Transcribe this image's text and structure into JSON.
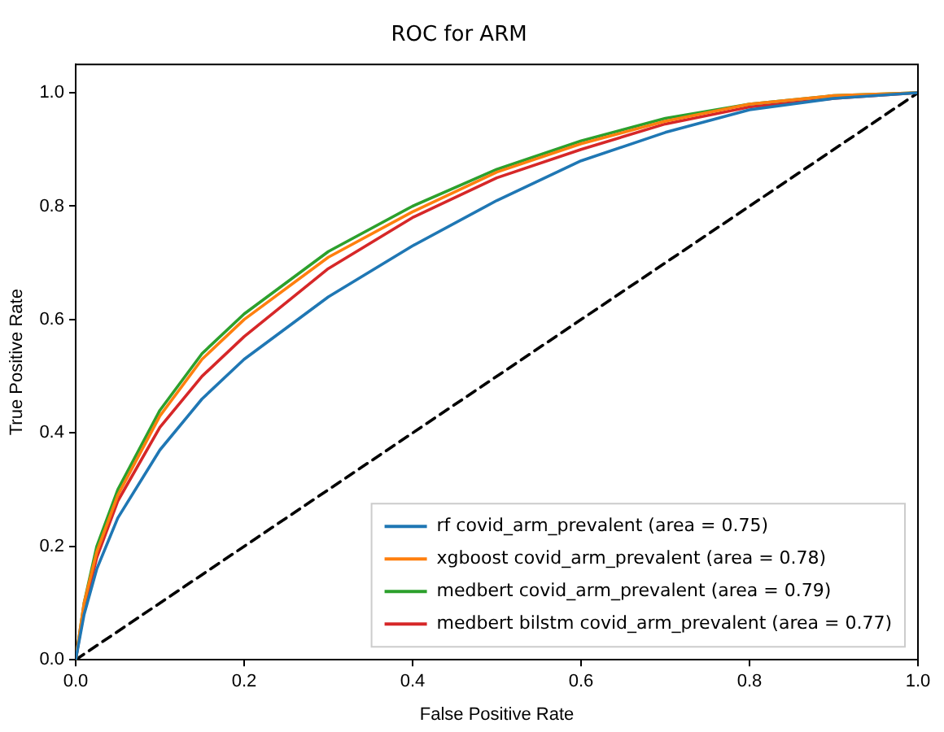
{
  "chart_data": {
    "type": "line",
    "title": "ROC for ARM",
    "xlabel": "False Positive Rate",
    "ylabel": "True Positive Rate",
    "xlim": [
      0,
      1
    ],
    "ylim": [
      0,
      1.05
    ],
    "xticks": [
      {
        "value": 0,
        "label": "0.0"
      },
      {
        "value": 0.2,
        "label": "0.2"
      },
      {
        "value": 0.4,
        "label": "0.4"
      },
      {
        "value": 0.6,
        "label": "0.6"
      },
      {
        "value": 0.8,
        "label": "0.8"
      },
      {
        "value": 1,
        "label": "1.0"
      }
    ],
    "yticks": [
      {
        "value": 0,
        "label": "0.0"
      },
      {
        "value": 0.2,
        "label": "0.2"
      },
      {
        "value": 0.4,
        "label": "0.4"
      },
      {
        "value": 0.6,
        "label": "0.6"
      },
      {
        "value": 0.8,
        "label": "0.8"
      },
      {
        "value": 1,
        "label": "1.0"
      }
    ],
    "grid": false,
    "legend": "bottom right",
    "marker": "none",
    "line_style": "solid",
    "series": [
      {
        "name": "rf covid_arm_prevalent (area = 0.75)",
        "color": "#1f77b4",
        "x": [
          0,
          0.01,
          0.025,
          0.05,
          0.1,
          0.15,
          0.2,
          0.3,
          0.4,
          0.5,
          0.6,
          0.7,
          0.8,
          0.9,
          1
        ],
        "values": [
          0,
          0.08,
          0.16,
          0.25,
          0.37,
          0.46,
          0.53,
          0.64,
          0.73,
          0.81,
          0.88,
          0.93,
          0.97,
          0.99,
          1
        ]
      },
      {
        "name": "xgboost covid_arm_prevalent (area = 0.78)",
        "color": "#ff7f0e",
        "x": [
          0,
          0.01,
          0.025,
          0.05,
          0.1,
          0.15,
          0.2,
          0.3,
          0.4,
          0.5,
          0.6,
          0.7,
          0.8,
          0.9,
          1
        ],
        "values": [
          0,
          0.1,
          0.19,
          0.29,
          0.43,
          0.53,
          0.6,
          0.71,
          0.79,
          0.86,
          0.91,
          0.95,
          0.98,
          0.995,
          1
        ]
      },
      {
        "name": "medbert covid_arm_prevalent (area = 0.79)",
        "color": "#2ca02c",
        "x": [
          0,
          0.01,
          0.025,
          0.05,
          0.1,
          0.15,
          0.2,
          0.3,
          0.4,
          0.5,
          0.6,
          0.7,
          0.8,
          0.9,
          1
        ],
        "values": [
          0,
          0.1,
          0.2,
          0.3,
          0.44,
          0.54,
          0.61,
          0.72,
          0.8,
          0.865,
          0.915,
          0.955,
          0.98,
          0.995,
          1
        ]
      },
      {
        "name": "medbert bilstm covid_arm_prevalent (area = 0.77)",
        "color": "#d62728",
        "x": [
          0,
          0.01,
          0.025,
          0.05,
          0.1,
          0.15,
          0.2,
          0.3,
          0.4,
          0.5,
          0.6,
          0.7,
          0.8,
          0.9,
          1
        ],
        "values": [
          0,
          0.09,
          0.18,
          0.28,
          0.41,
          0.5,
          0.57,
          0.69,
          0.78,
          0.85,
          0.9,
          0.945,
          0.975,
          0.99,
          1
        ]
      },
      {
        "color": "#000000",
        "line_style": "dashed",
        "x": [
          0,
          1
        ],
        "values": [
          0,
          1
        ]
      }
    ]
  }
}
